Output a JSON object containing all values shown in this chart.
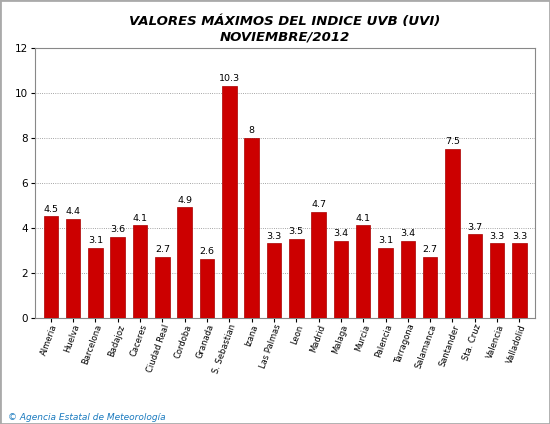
{
  "categories": [
    "Almeria",
    "Huelva",
    "Barcelona",
    "Badajoz",
    "Caceres",
    "Ciudad Real",
    "Cordoba",
    "Granada",
    "S. Sebastian",
    "Izana",
    "Las Palmas",
    "Leon",
    "Madrid",
    "Malaga",
    "Murcia",
    "Palencia",
    "Tarragona",
    "Salamanca",
    "Santander",
    "Sta. Cruz",
    "Valencia",
    "Valladolid"
  ],
  "values": [
    4.5,
    4.4,
    3.1,
    3.6,
    4.1,
    2.7,
    4.9,
    2.6,
    10.3,
    8.0,
    3.3,
    3.5,
    4.7,
    3.4,
    4.1,
    3.1,
    3.4,
    2.7,
    7.5,
    3.7,
    3.3,
    3.3
  ],
  "bar_color": "#cc0000",
  "title_line1": "VALORES MÁXIMOS DEL INDICE UVB (UVI)",
  "title_line2": "NOVIEMBRE/2012",
  "ylim_max": 12,
  "yticks": [
    0,
    2,
    4,
    6,
    8,
    10,
    12
  ],
  "footer_text": "© Agencia Estatal de Meteorología",
  "title_fontsize": 9.5,
  "bar_label_fontsize": 6.8,
  "tick_label_fontsize": 6.0,
  "ytick_fontsize": 7.5,
  "border_color": "#aaaaaa",
  "grid_color": "#cccccc",
  "grid_color_solid": "#888888"
}
